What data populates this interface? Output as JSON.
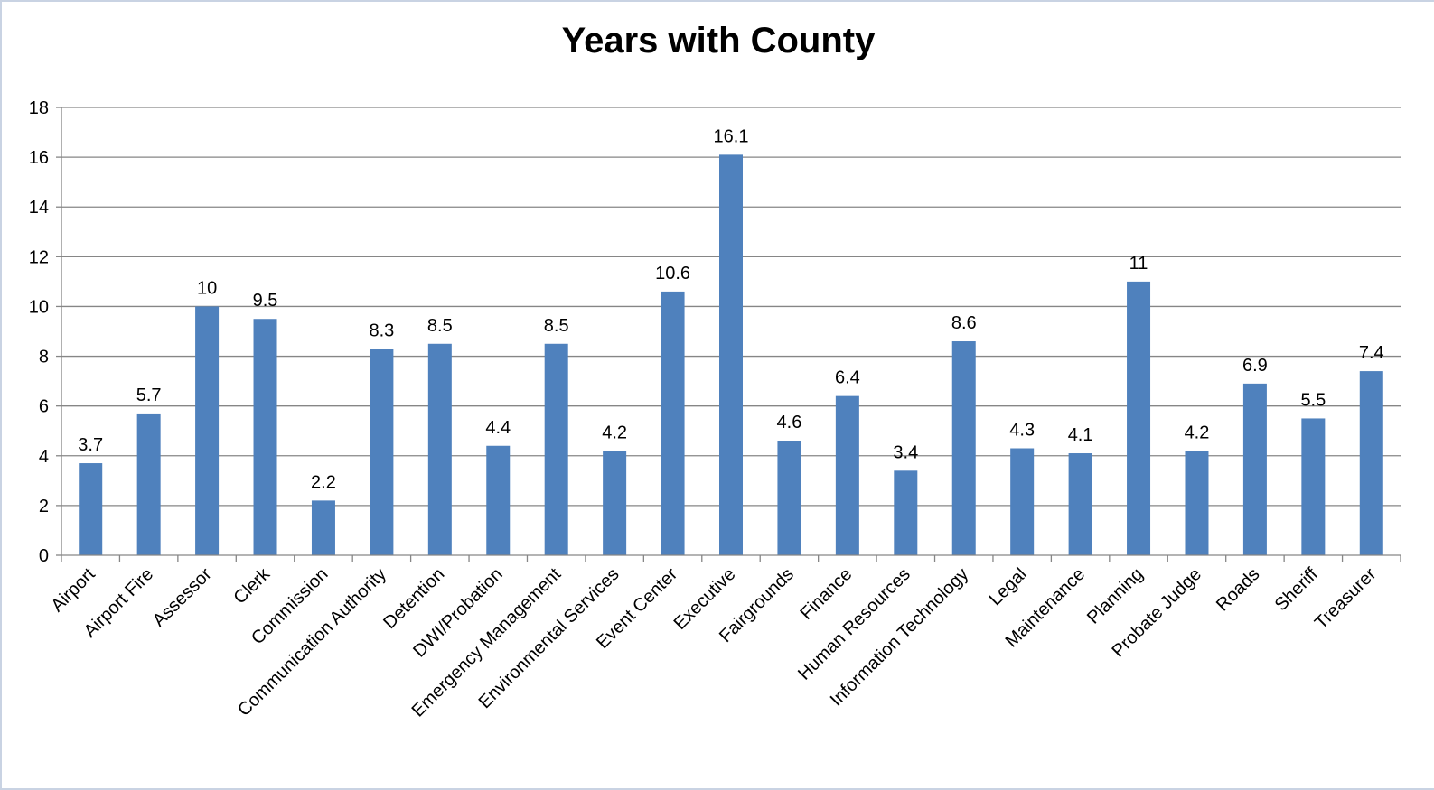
{
  "chart_data": {
    "type": "bar",
    "title": "Years with County",
    "xlabel": "",
    "ylabel": "",
    "ylim": [
      0,
      18
    ],
    "yticks": [
      0,
      2,
      4,
      6,
      8,
      10,
      12,
      14,
      16,
      18
    ],
    "grid": true,
    "legend": "none",
    "bar_color": "#4f81bd",
    "grid_color": "#868686",
    "categories": [
      "Airport",
      "Airport Fire",
      "Assessor",
      "Clerk",
      "Commission",
      "Communication Authority",
      "Detention",
      "DWI/Probation",
      "Emergency Management",
      "Environmental Services",
      "Event Center",
      "Executive",
      "Fairgrounds",
      "Finance",
      "Human Resources",
      "Information Technology",
      "Legal",
      "Maintenance",
      "Planning",
      "Probate Judge",
      "Roads",
      "Sheriff",
      "Treasurer"
    ],
    "values": [
      3.7,
      5.7,
      10,
      9.5,
      2.2,
      8.3,
      8.5,
      4.4,
      8.5,
      4.2,
      10.6,
      16.1,
      4.6,
      6.4,
      3.4,
      8.6,
      4.3,
      4.1,
      11,
      4.2,
      6.9,
      5.5,
      7.4
    ],
    "value_labels": [
      "3.7",
      "5.7",
      "10",
      "9.5",
      "2.2",
      "8.3",
      "8.5",
      "4.4",
      "8.5",
      "4.2",
      "10.6",
      "16.1",
      "4.6",
      "6.4",
      "3.4",
      "8.6",
      "4.3",
      "4.1",
      "11",
      "4.2",
      "6.9",
      "5.5",
      "7.4"
    ]
  }
}
